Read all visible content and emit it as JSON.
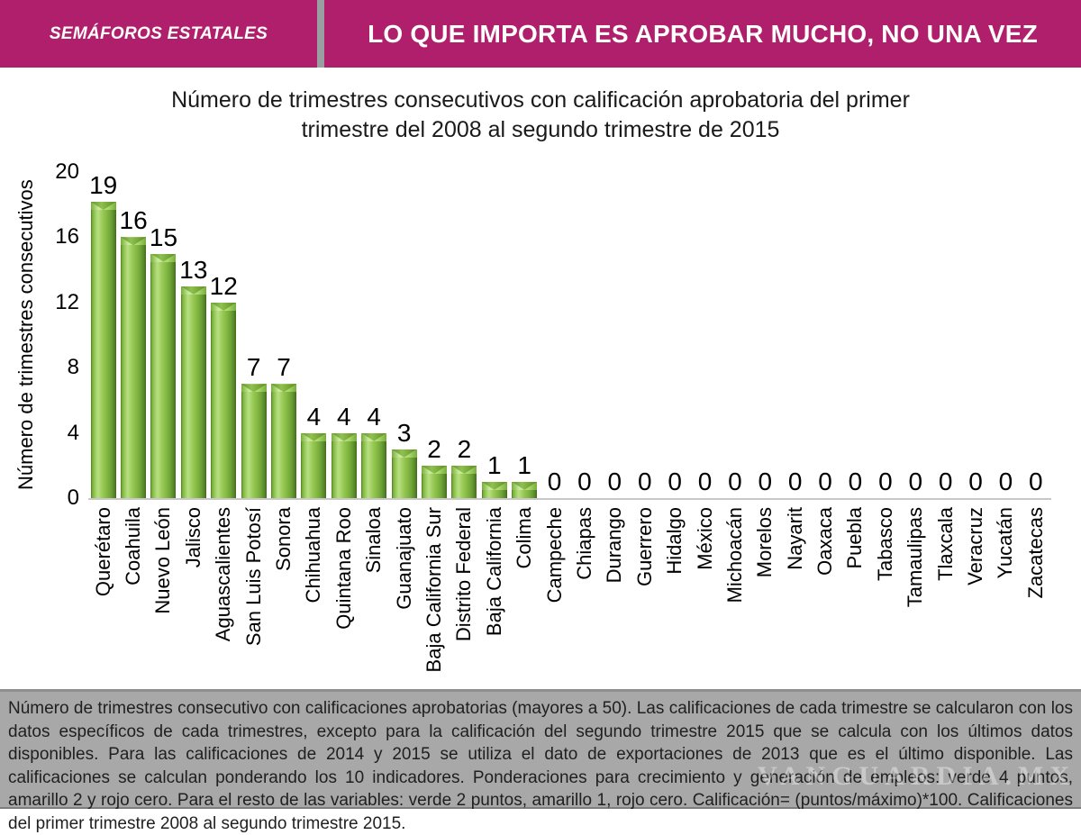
{
  "header": {
    "left_label": "SEMÁFOROS ESTATALES",
    "right_label": "LO QUE IMPORTA ES APROBAR MUCHO, NO UNA VEZ",
    "bg_color": "#B01F6B",
    "divider_color": "#9B9EA1"
  },
  "chart_data": {
    "type": "bar",
    "title_line1": "Número de trimestres consecutivos con calificación aprobatoria del primer",
    "title_line2": "trimestre del 2008 al segundo trimestre de 2015",
    "ylabel": "Número de trimestres consecutivos",
    "xlabel": "",
    "ylim": [
      0,
      20
    ],
    "yticks": [
      0,
      4,
      8,
      12,
      16,
      20
    ],
    "grid": false,
    "legend": "none",
    "bar_color": "#8CC04B",
    "categories": [
      "Querétaro",
      "Coahuila",
      "Nuevo León",
      "Jalisco",
      "Aguascalientes",
      "San Luis Potosí",
      "Sonora",
      "Chihuahua",
      "Quintana Roo",
      "Sinaloa",
      "Guanajuato",
      "Baja California Sur",
      "Distrito Federal",
      "Baja California",
      "Colima",
      "Campeche",
      "Chiapas",
      "Durango",
      "Guerrero",
      "Hidalgo",
      "México",
      "Michoacán",
      "Morelos",
      "Nayarit",
      "Oaxaca",
      "Puebla",
      "Tabasco",
      "Tamaulipas",
      "Tlaxcala",
      "Veracruz",
      "Yucatán",
      "Zacatecas"
    ],
    "values": [
      19,
      16,
      15,
      13,
      12,
      7,
      7,
      4,
      4,
      4,
      3,
      2,
      2,
      1,
      1,
      0,
      0,
      0,
      0,
      0,
      0,
      0,
      0,
      0,
      0,
      0,
      0,
      0,
      0,
      0,
      0,
      0
    ]
  },
  "footer": {
    "note": "Número de trimestres consecutivo con calificaciones aprobatorias (mayores a 50). Las calificaciones de cada trimestre se calcularon con los datos específicos de cada trimestres, excepto para la calificación del segundo trimestre 2015 que se calcula con los últimos datos disponibles. Para las calificaciones de 2014 y 2015 se utiliza el dato de exportaciones de 2013 que es el último disponible. Las calificaciones se calculan ponderando los 10 indicadores. Ponderaciones para crecimiento y generación de empleos: verde 4 puntos, amarillo 2 y rojo cero. Para el resto de las variables: verde 2 puntos, amarillo 1, rojo cero. Calificación= (puntos/máximo)*100. Calificaciones del primer trimestre 2008 al segundo trimestre 2015.",
    "watermark": "VANGUARDIA.MX",
    "bg_color": "#A8A8A8"
  }
}
